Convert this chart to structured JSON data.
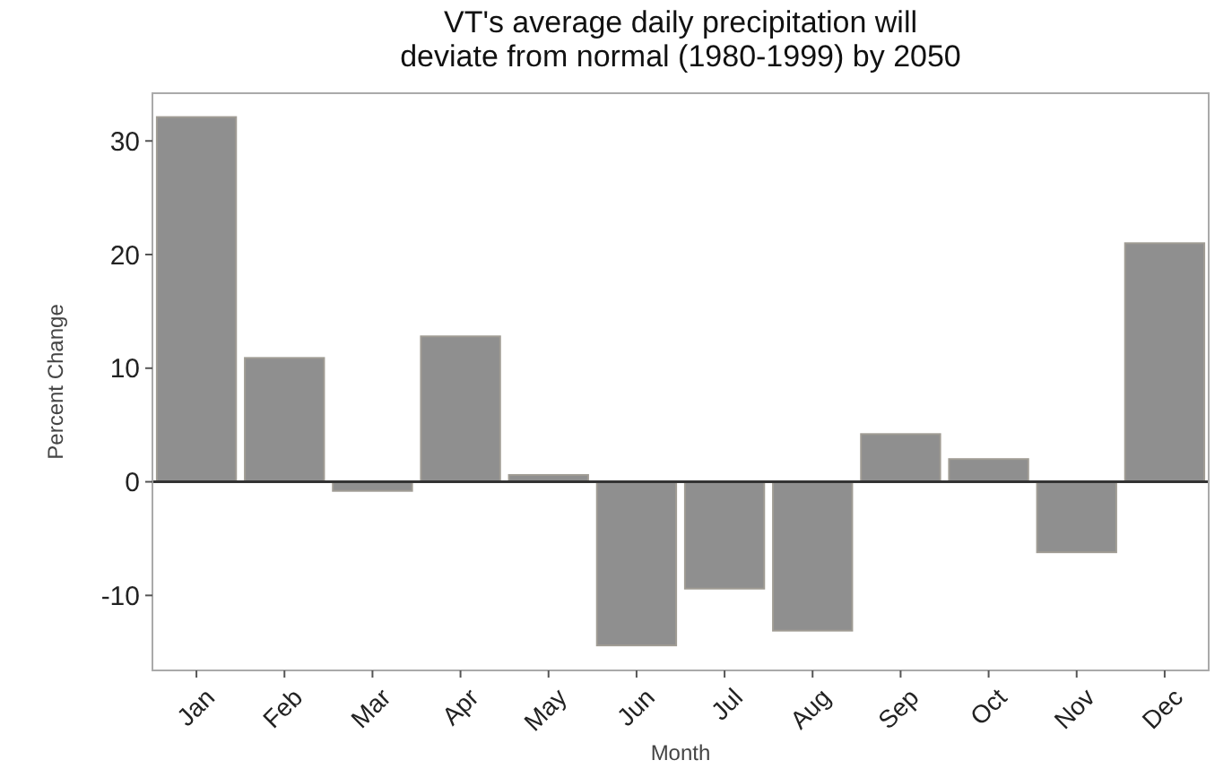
{
  "chart_data": {
    "type": "bar",
    "title": "VT's average daily precipitation will\ndeviate from normal (1980-1999) by 2050",
    "xlabel": "Month",
    "ylabel": "Percent Change",
    "categories": [
      "Jan",
      "Feb",
      "Mar",
      "Apr",
      "May",
      "Jun",
      "Jul",
      "Aug",
      "Sep",
      "Oct",
      "Nov",
      "Dec"
    ],
    "values": [
      32.1,
      10.9,
      -0.8,
      12.8,
      0.6,
      -14.4,
      -9.4,
      -13.1,
      4.2,
      2.0,
      -6.2,
      21.0
    ],
    "color": "#8f8f8f",
    "ylim": [
      -16.6,
      34.2
    ],
    "yticks": [
      -10,
      0,
      10,
      20,
      30
    ],
    "grid": false,
    "ref_lines": [
      {
        "axis": "y",
        "value": 0,
        "color": "#333333"
      }
    ]
  }
}
